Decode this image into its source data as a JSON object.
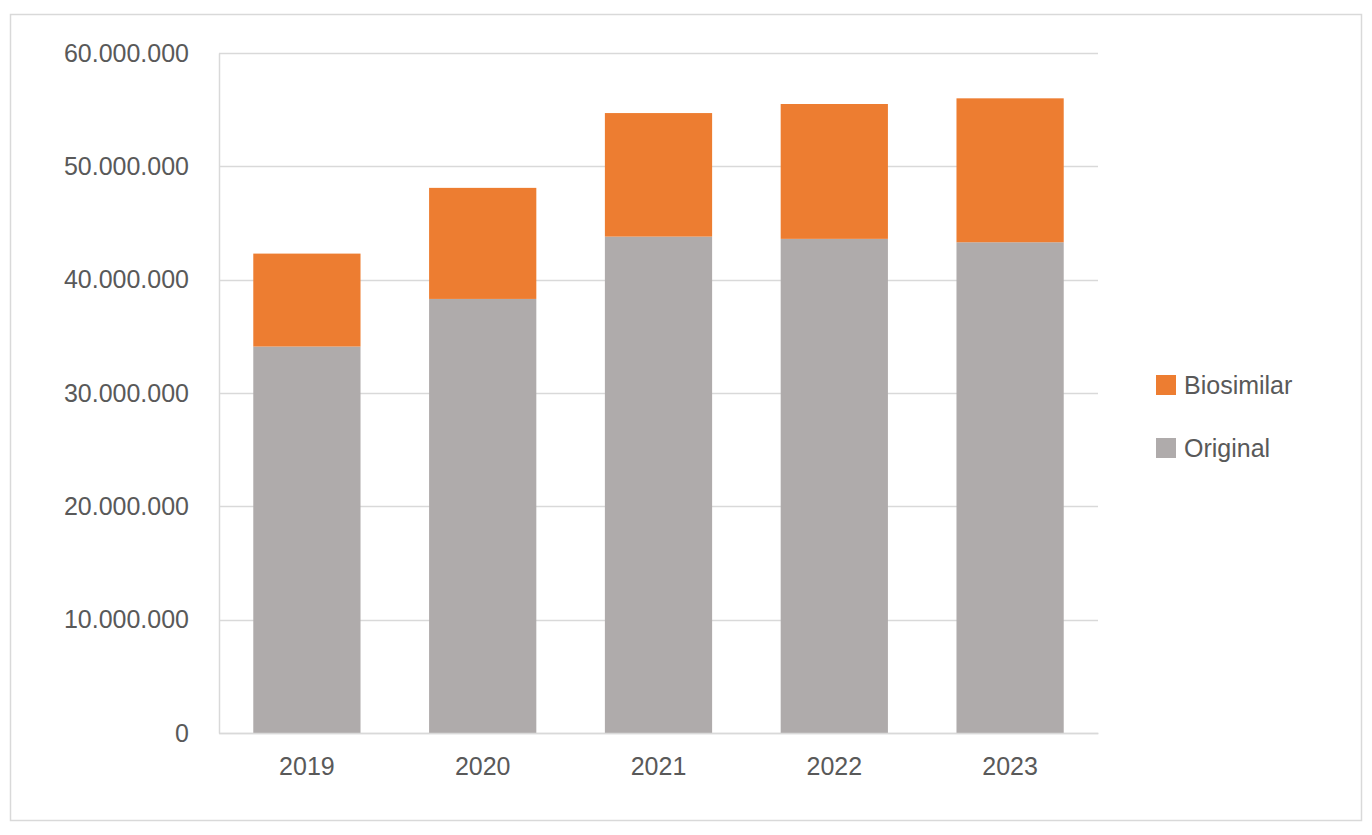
{
  "chart_data": {
    "type": "bar",
    "stacked": true,
    "grid": true,
    "legend": "right",
    "categories": [
      "2019",
      "2020",
      "2021",
      "2022",
      "2023"
    ],
    "series": [
      {
        "name": "Original",
        "color": "#AFABAB",
        "values": [
          34100000,
          38300000,
          43800000,
          43600000,
          43300000
        ]
      },
      {
        "name": "Biosimilar",
        "color": "#ED7D31",
        "values": [
          8200000,
          9800000,
          10900000,
          11900000,
          12700000
        ]
      }
    ],
    "ylim": [
      0,
      60000000
    ],
    "yticks": [
      0,
      {
        "value": 10000000,
        "label": "10.000.000"
      },
      {
        "value": 20000000,
        "label": "20.000.000"
      },
      {
        "value": 30000000,
        "label": "30.000.000"
      },
      {
        "value": 40000000,
        "label": "40.000.000"
      },
      {
        "value": 50000000,
        "label": "50.000.000"
      },
      {
        "value": 60000000,
        "label": "60.000.000"
      }
    ]
  }
}
